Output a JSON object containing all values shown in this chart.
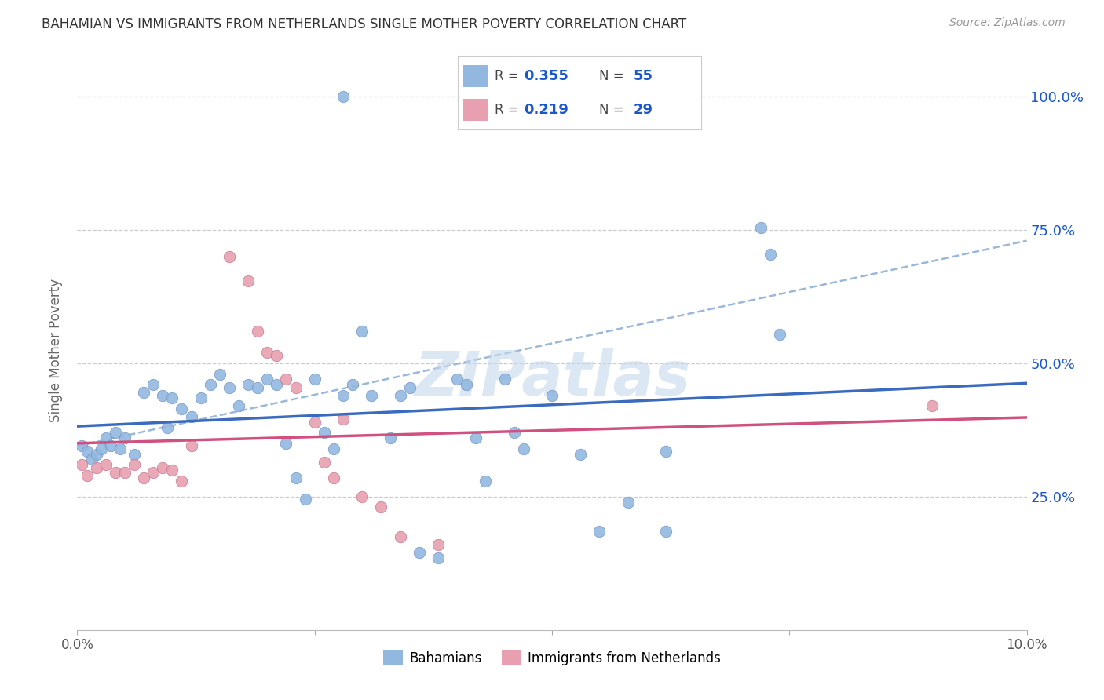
{
  "title": "BAHAMIAN VS IMMIGRANTS FROM NETHERLANDS SINGLE MOTHER POVERTY CORRELATION CHART",
  "source": "Source: ZipAtlas.com",
  "ylabel": "Single Mother Poverty",
  "y_ticks": [
    0.25,
    0.5,
    0.75,
    1.0
  ],
  "y_tick_labels": [
    "25.0%",
    "50.0%",
    "75.0%",
    "100.0%"
  ],
  "blue_color": "#92b8e0",
  "pink_color": "#e8a0b0",
  "blue_line_color": "#3b6bbf",
  "pink_line_color": "#d05080",
  "dashed_line_color": "#9ab8d8",
  "watermark": "ZIPatlas",
  "legend_text_color": "#1a56cc",
  "xlim": [
    0.0,
    0.1
  ],
  "ylim": [
    0.0,
    1.05
  ],
  "blue_scatter": [
    [
      0.0005,
      0.345
    ],
    [
      0.001,
      0.335
    ],
    [
      0.0015,
      0.32
    ],
    [
      0.002,
      0.33
    ],
    [
      0.0025,
      0.34
    ],
    [
      0.003,
      0.36
    ],
    [
      0.0035,
      0.345
    ],
    [
      0.004,
      0.37
    ],
    [
      0.0045,
      0.34
    ],
    [
      0.005,
      0.36
    ],
    [
      0.006,
      0.33
    ],
    [
      0.007,
      0.445
    ],
    [
      0.008,
      0.46
    ],
    [
      0.009,
      0.44
    ],
    [
      0.0095,
      0.38
    ],
    [
      0.01,
      0.435
    ],
    [
      0.011,
      0.415
    ],
    [
      0.012,
      0.4
    ],
    [
      0.013,
      0.435
    ],
    [
      0.014,
      0.46
    ],
    [
      0.015,
      0.48
    ],
    [
      0.016,
      0.455
    ],
    [
      0.017,
      0.42
    ],
    [
      0.018,
      0.46
    ],
    [
      0.019,
      0.455
    ],
    [
      0.02,
      0.47
    ],
    [
      0.021,
      0.46
    ],
    [
      0.022,
      0.35
    ],
    [
      0.023,
      0.285
    ],
    [
      0.024,
      0.245
    ],
    [
      0.025,
      0.47
    ],
    [
      0.026,
      0.37
    ],
    [
      0.027,
      0.34
    ],
    [
      0.028,
      0.44
    ],
    [
      0.029,
      0.46
    ],
    [
      0.03,
      0.56
    ],
    [
      0.031,
      0.44
    ],
    [
      0.033,
      0.36
    ],
    [
      0.034,
      0.44
    ],
    [
      0.035,
      0.455
    ],
    [
      0.036,
      0.145
    ],
    [
      0.038,
      0.135
    ],
    [
      0.04,
      0.47
    ],
    [
      0.041,
      0.46
    ],
    [
      0.042,
      0.36
    ],
    [
      0.043,
      0.28
    ],
    [
      0.045,
      0.47
    ],
    [
      0.046,
      0.37
    ],
    [
      0.047,
      0.34
    ],
    [
      0.05,
      0.44
    ],
    [
      0.053,
      0.33
    ],
    [
      0.055,
      0.185
    ],
    [
      0.058,
      0.24
    ],
    [
      0.062,
      0.335
    ],
    [
      0.072,
      0.755
    ],
    [
      0.073,
      0.705
    ],
    [
      0.074,
      0.555
    ],
    [
      0.062,
      0.185
    ],
    [
      0.028,
      1.0
    ]
  ],
  "pink_scatter": [
    [
      0.0005,
      0.31
    ],
    [
      0.001,
      0.29
    ],
    [
      0.002,
      0.305
    ],
    [
      0.003,
      0.31
    ],
    [
      0.004,
      0.295
    ],
    [
      0.005,
      0.295
    ],
    [
      0.006,
      0.31
    ],
    [
      0.007,
      0.285
    ],
    [
      0.008,
      0.295
    ],
    [
      0.009,
      0.305
    ],
    [
      0.01,
      0.3
    ],
    [
      0.011,
      0.28
    ],
    [
      0.012,
      0.345
    ],
    [
      0.016,
      0.7
    ],
    [
      0.018,
      0.655
    ],
    [
      0.019,
      0.56
    ],
    [
      0.02,
      0.52
    ],
    [
      0.021,
      0.515
    ],
    [
      0.022,
      0.47
    ],
    [
      0.023,
      0.455
    ],
    [
      0.025,
      0.39
    ],
    [
      0.026,
      0.315
    ],
    [
      0.027,
      0.285
    ],
    [
      0.028,
      0.395
    ],
    [
      0.03,
      0.25
    ],
    [
      0.032,
      0.23
    ],
    [
      0.034,
      0.175
    ],
    [
      0.038,
      0.16
    ],
    [
      0.09,
      0.42
    ]
  ]
}
